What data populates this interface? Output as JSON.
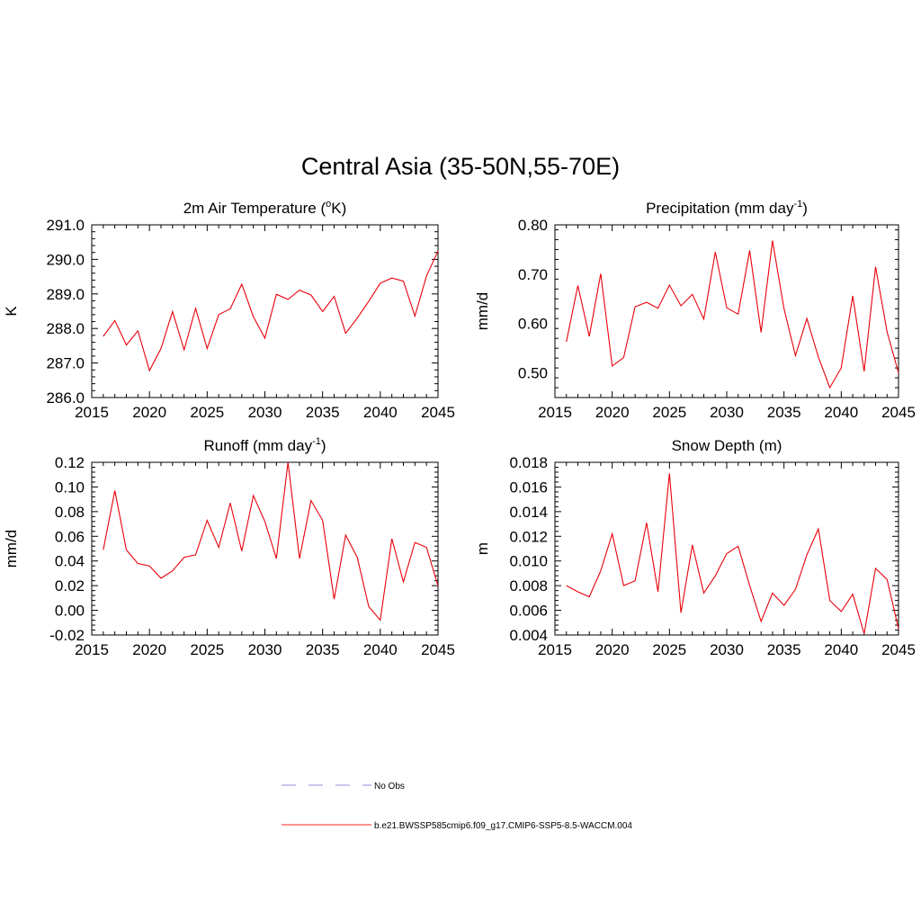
{
  "title": "Central Asia (35-50N,55-70E)",
  "legend": [
    {
      "label": "No Obs",
      "color": "#a8a8e0",
      "style": "dashed"
    },
    {
      "label": "b.e21.BWSSP585cmip6.f09_g17.CMIP6-SSP5-8.5-WACCM.004",
      "color": "#ff4d4d",
      "style": "solid"
    }
  ],
  "chart_data": [
    {
      "type": "line",
      "title_main": "2m Air Temperature (",
      "title_sup": "o",
      "title_end": "K)",
      "ylabel": "K",
      "xlim": [
        2015,
        2045
      ],
      "ylim": [
        286.0,
        291.0
      ],
      "xticks": [
        "2015",
        "2020",
        "2025",
        "2030",
        "2035",
        "2040",
        "2045"
      ],
      "yticks": [
        "286.0",
        "287.0",
        "288.0",
        "289.0",
        "290.0",
        "291.0"
      ],
      "x": [
        2016,
        2017,
        2018,
        2019,
        2020,
        2021,
        2022,
        2023,
        2024,
        2025,
        2026,
        2027,
        2028,
        2029,
        2030,
        2031,
        2032,
        2033,
        2034,
        2035,
        2036,
        2037,
        2038,
        2039,
        2040,
        2041,
        2042,
        2043,
        2044,
        2045
      ],
      "series": [
        {
          "color": "#e8000b",
          "values": [
            287.77,
            288.23,
            287.52,
            287.93,
            286.78,
            287.42,
            288.49,
            287.38,
            288.58,
            287.42,
            288.4,
            288.57,
            289.28,
            288.34,
            287.72,
            288.99,
            288.84,
            289.11,
            288.97,
            288.49,
            288.93,
            287.86,
            288.3,
            288.79,
            289.31,
            289.46,
            289.37,
            288.36,
            289.52,
            290.24
          ]
        }
      ]
    },
    {
      "type": "line",
      "title_main": "Precipitation (mm day",
      "title_sup": "-1",
      "title_end": ")",
      "ylabel": "mm/d",
      "xlim": [
        2015,
        2045
      ],
      "ylim": [
        0.45,
        0.8
      ],
      "xticks": [
        "2015",
        "2020",
        "2025",
        "2030",
        "2035",
        "2040",
        "2045"
      ],
      "yticks": [
        "0.50",
        "0.60",
        "0.70",
        "0.80"
      ],
      "x": [
        2016,
        2017,
        2018,
        2019,
        2020,
        2021,
        2022,
        2023,
        2024,
        2025,
        2026,
        2027,
        2028,
        2029,
        2030,
        2031,
        2032,
        2033,
        2034,
        2035,
        2036,
        2037,
        2038,
        2039,
        2040,
        2041,
        2042,
        2043,
        2044,
        2045
      ],
      "series": [
        {
          "color": "#e8000b",
          "values": [
            0.563,
            0.677,
            0.574,
            0.701,
            0.514,
            0.531,
            0.634,
            0.643,
            0.631,
            0.678,
            0.636,
            0.659,
            0.609,
            0.745,
            0.632,
            0.619,
            0.748,
            0.582,
            0.768,
            0.63,
            0.535,
            0.61,
            0.532,
            0.47,
            0.51,
            0.656,
            0.503,
            0.715,
            0.583,
            0.5
          ]
        }
      ]
    },
    {
      "type": "line",
      "title_main": "Runoff (mm day",
      "title_sup": "-1",
      "title_end": ")",
      "ylabel": "mm/d",
      "xlim": [
        2015,
        2045
      ],
      "ylim": [
        -0.02,
        0.12
      ],
      "xticks": [
        "2015",
        "2020",
        "2025",
        "2030",
        "2035",
        "2040",
        "2045"
      ],
      "yticks": [
        "-0.02",
        "0.00",
        "0.02",
        "0.04",
        "0.06",
        "0.08",
        "0.10",
        "0.12"
      ],
      "x": [
        2016,
        2017,
        2018,
        2019,
        2020,
        2021,
        2022,
        2023,
        2024,
        2025,
        2026,
        2027,
        2028,
        2029,
        2030,
        2031,
        2032,
        2033,
        2034,
        2035,
        2036,
        2037,
        2038,
        2039,
        2040,
        2041,
        2042,
        2043,
        2044,
        2045
      ],
      "series": [
        {
          "color": "#e8000b",
          "values": [
            0.049,
            0.097,
            0.049,
            0.038,
            0.036,
            0.026,
            0.032,
            0.043,
            0.045,
            0.073,
            0.051,
            0.087,
            0.048,
            0.093,
            0.072,
            0.042,
            0.12,
            0.042,
            0.089,
            0.073,
            0.009,
            0.061,
            0.043,
            0.003,
            -0.008,
            0.058,
            0.023,
            0.055,
            0.051,
            0.02
          ]
        }
      ]
    },
    {
      "type": "line",
      "title_main": "Snow Depth (m)",
      "title_sup": "",
      "title_end": "",
      "ylabel": "m",
      "xlim": [
        2015,
        2045
      ],
      "ylim": [
        0.004,
        0.018
      ],
      "xticks": [
        "2015",
        "2020",
        "2025",
        "2030",
        "2035",
        "2040",
        "2045"
      ],
      "yticks": [
        "0.004",
        "0.006",
        "0.008",
        "0.010",
        "0.012",
        "0.014",
        "0.016",
        "0.018"
      ],
      "x": [
        2016,
        2017,
        2018,
        2019,
        2020,
        2021,
        2022,
        2023,
        2024,
        2025,
        2026,
        2027,
        2028,
        2029,
        2030,
        2031,
        2032,
        2033,
        2034,
        2035,
        2036,
        2037,
        2038,
        2039,
        2040,
        2041,
        2042,
        2043,
        2044,
        2045
      ],
      "series": [
        {
          "color": "#e8000b",
          "values": [
            0.008,
            0.0075,
            0.0071,
            0.0092,
            0.0122,
            0.008,
            0.0084,
            0.0131,
            0.0075,
            0.0171,
            0.0058,
            0.0113,
            0.0074,
            0.0088,
            0.0106,
            0.0112,
            0.008,
            0.0051,
            0.0074,
            0.0064,
            0.0077,
            0.0105,
            0.0126,
            0.0068,
            0.0059,
            0.0073,
            0.0041,
            0.0094,
            0.0085,
            0.0045
          ]
        }
      ]
    }
  ]
}
